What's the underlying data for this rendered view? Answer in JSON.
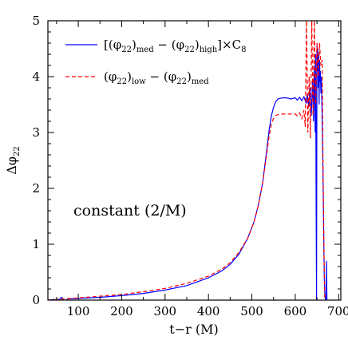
{
  "chart_data": {
    "type": "line",
    "xlabel": "t−r (M)",
    "ylabel_main": "Δφ",
    "ylabel_sub": "22",
    "xlim": [
      30,
      705
    ],
    "ylim": [
      0,
      5
    ],
    "xticks_major": [
      100,
      200,
      300,
      400,
      500,
      600,
      700
    ],
    "yticks_major": [
      0,
      1,
      2,
      3,
      4,
      5
    ],
    "annotation": "constant (2/M)",
    "legend": {
      "placement": "top-left",
      "entries": [
        {
          "parts": [
            {
              "t": "[(φ"
            },
            {
              "t": "22",
              "s": true
            },
            {
              "t": ")"
            },
            {
              "t": "med",
              "s": true
            },
            {
              "t": " − (φ"
            },
            {
              "t": "22",
              "s": true
            },
            {
              "t": ")"
            },
            {
              "t": "high",
              "s": true
            },
            {
              "t": "]×C"
            },
            {
              "t": "8",
              "s": true
            }
          ],
          "color": "#0000ff",
          "dash": "solid"
        },
        {
          "parts": [
            {
              "t": "(φ"
            },
            {
              "t": "22",
              "s": true
            },
            {
              "t": ")"
            },
            {
              "t": "low",
              "s": true
            },
            {
              "t": " − (φ"
            },
            {
              "t": "22",
              "s": true
            },
            {
              "t": ")"
            },
            {
              "t": "med",
              "s": true
            }
          ],
          "color": "#ff0000",
          "dash": "dashed"
        }
      ]
    },
    "series": [
      {
        "color": "#0000ff",
        "dash": "solid",
        "x": [
          30,
          40,
          55,
          62,
          68,
          75,
          100,
          150,
          200,
          250,
          300,
          350,
          400,
          430,
          450,
          470,
          490,
          505,
          515,
          525,
          533,
          540,
          545,
          550,
          555,
          560,
          570,
          580,
          590,
          600,
          605,
          610,
          615,
          620,
          625,
          628,
          631,
          634,
          637,
          640,
          642,
          644,
          646,
          647,
          648,
          649,
          650,
          651,
          652,
          653,
          654,
          655,
          656,
          657,
          658,
          659,
          660,
          661,
          662,
          663,
          664,
          665,
          666,
          667,
          668,
          669,
          670,
          671,
          672,
          673
        ],
        "y": [
          0.0,
          0.01,
          0.01,
          0.05,
          -0.02,
          0.02,
          0.03,
          0.05,
          0.08,
          0.12,
          0.18,
          0.26,
          0.4,
          0.52,
          0.64,
          0.82,
          1.1,
          1.4,
          1.7,
          2.1,
          2.6,
          3.05,
          3.3,
          3.45,
          3.55,
          3.6,
          3.62,
          3.62,
          3.6,
          3.62,
          3.58,
          3.63,
          3.57,
          3.64,
          3.52,
          3.7,
          3.45,
          3.8,
          3.3,
          3.95,
          3.2,
          4.2,
          3.0,
          4.4,
          2.0,
          0.0,
          4.6,
          4.1,
          4.5,
          3.8,
          4.4,
          3.5,
          4.3,
          3.9,
          4.1,
          3.7,
          4.0,
          3.6,
          3.3,
          2.8,
          2.2,
          1.5,
          0.9,
          0.4,
          0.15,
          0.05,
          0.0,
          0.0,
          0.7,
          0.0
        ]
      },
      {
        "color": "#ff0000",
        "dash": "dashed",
        "x": [
          30,
          100,
          150,
          200,
          250,
          300,
          350,
          400,
          430,
          450,
          470,
          490,
          505,
          515,
          525,
          533,
          540,
          545,
          550,
          555,
          560,
          570,
          580,
          590,
          600,
          605,
          610,
          615,
          620,
          623,
          626,
          629,
          632,
          635,
          638,
          641,
          644,
          647,
          650,
          653,
          656,
          659,
          662,
          664,
          666,
          668
        ],
        "y": [
          0.0,
          0.04,
          0.07,
          0.1,
          0.15,
          0.21,
          0.3,
          0.43,
          0.55,
          0.67,
          0.85,
          1.1,
          1.4,
          1.7,
          2.1,
          2.55,
          2.95,
          3.15,
          3.25,
          3.3,
          3.32,
          3.33,
          3.33,
          3.33,
          3.33,
          3.3,
          3.35,
          3.25,
          3.4,
          3.1,
          5.0,
          3.0,
          4.0,
          2.9,
          5.0,
          3.3,
          5.0,
          3.5,
          4.6,
          4.0,
          4.6,
          4.2,
          4.3,
          2.5,
          1.0,
          0.0
        ]
      }
    ]
  }
}
